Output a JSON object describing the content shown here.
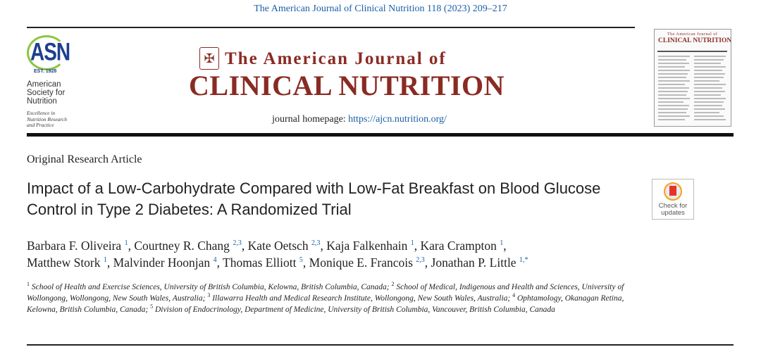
{
  "citation": "The American Journal of Clinical Nutrition 118 (2023) 209–217",
  "society": {
    "logo_text": "ASN",
    "established": "EST. 1928",
    "name_lines": [
      "American",
      "Society for",
      "Nutrition"
    ],
    "tagline_lines": [
      "Excellence in",
      "Nutrition Research",
      "and Practice"
    ]
  },
  "journal": {
    "title_line1": "The American Journal of",
    "title_line2": "CLINICAL NUTRITION",
    "homepage_label": "journal homepage:",
    "homepage_url": "https://ajcn.nutrition.org/",
    "emblem_icon": "journal-crest-icon"
  },
  "cover": {
    "line1": "The American Journal of",
    "line2": "CLINICAL NUTRITION"
  },
  "article_type": "Original Research Article",
  "title": "Impact of a Low-Carbohydrate Compared with Low-Fat Breakfast on Blood Glucose Control in Type 2 Diabetes: A Randomized Trial",
  "check_updates": {
    "line1": "Check for",
    "line2": "updates"
  },
  "authors": [
    {
      "name": "Barbara F. Oliveira",
      "sup": "1",
      "sep": ", "
    },
    {
      "name": "Courtney R. Chang",
      "sup": "2,3",
      "sep": ", "
    },
    {
      "name": "Kate Oetsch",
      "sup": "2,3",
      "sep": ", "
    },
    {
      "name": "Kaja Falkenhain",
      "sup": "1",
      "sep": ", "
    },
    {
      "name": "Kara Crampton",
      "sup": "1",
      "sep": ","
    },
    {
      "name": "Matthew Stork",
      "sup": "1",
      "sep": ", "
    },
    {
      "name": "Malvinder Hoonjan",
      "sup": "4",
      "sep": ", "
    },
    {
      "name": "Thomas Elliott",
      "sup": "5",
      "sep": ", "
    },
    {
      "name": "Monique E. Francois",
      "sup": "2,3",
      "sep": ", "
    },
    {
      "name": "Jonathan P. Little",
      "sup": "1,*",
      "sep": ""
    }
  ],
  "affiliations": [
    {
      "sup": "1",
      "text": " School of Health and Exercise Sciences, University of British Columbia, Kelowna, British Columbia, Canada; "
    },
    {
      "sup": "2",
      "text": " School of Medical, Indigenous and Health and Sciences, University of Wollongong, Wollongong, New South Wales, Australia; "
    },
    {
      "sup": "3",
      "text": " Illawarra Health and Medical Research Institute, Wollongong, New South Wales, Australia; "
    },
    {
      "sup": "4",
      "text": " Ophtamology, Okanagan Retina, Kelowna, British Columbia, Canada; "
    },
    {
      "sup": "5",
      "text": " Division of Endocrinology, Department of Medicine, University of British Columbia, Vancouver, British Columbia, Canada"
    }
  ],
  "colors": {
    "journal_red": "#8a2b23",
    "link_blue": "#1a5fa8",
    "asn_blue": "#1d3f8f",
    "asn_green": "#8cc63f"
  }
}
